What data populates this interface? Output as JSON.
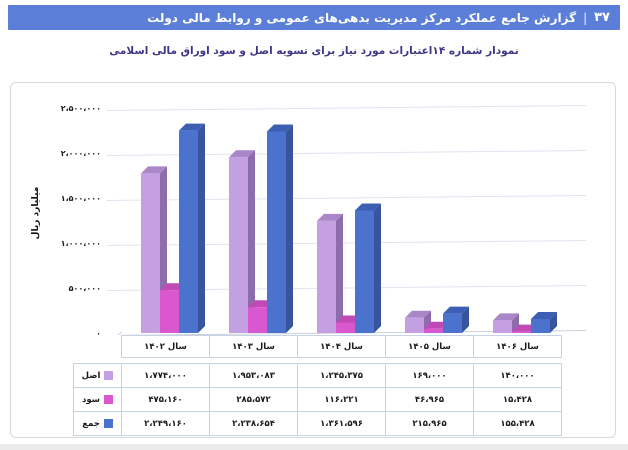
{
  "page": {
    "header": {
      "number": "۳۷",
      "separator": "|",
      "title": "گزارش جامع عملکرد مرکز مدیریت بدهی‌های عمومی و روابط مالی دولت",
      "bg_color": "#5b7ed8",
      "text_color": "#ffffff"
    },
    "title_color": "#3d3687",
    "footer_strip_color": "#ebebeb"
  },
  "chart_data": {
    "type": "bar",
    "style": "3d-clustered-column",
    "title": "نمودار شماره ۱۴اعتبارات مورد نیاز برای تسویه اصل و سود اوراق مالی اسلامی",
    "ylabel": "میلیارد ریال",
    "xlabel": "",
    "ylim": [
      0,
      2500000
    ],
    "ytick_interval": 500000,
    "yticks_display": [
      "۰",
      "۵۰۰،۰۰۰",
      "۱،۰۰۰،۰۰۰",
      "۱،۵۰۰،۰۰۰",
      "۲،۰۰۰،۰۰۰",
      "۲،۵۰۰،۰۰۰"
    ],
    "categories": [
      "سال ۱۴۰۲",
      "سال ۱۴۰۳",
      "سال ۱۴۰۴",
      "سال ۱۴۰۵",
      "سال ۱۴۰۶"
    ],
    "series": [
      {
        "name": "اصل",
        "values": [
          1774000,
          1953083,
          1245375,
          169000,
          140000
        ],
        "display": [
          "۱،۷۷۴،۰۰۰",
          "۱،۹۵۳،۰۸۳",
          "۱،۲۴۵،۳۷۵",
          "۱۶۹،۰۰۰",
          "۱۴۰،۰۰۰"
        ],
        "color": "#c49fe2",
        "color_top": "#aa87c8",
        "color_side": "#8d6cab"
      },
      {
        "name": "سود",
        "values": [
          475160,
          285572,
          116221,
          46965,
          15428
        ],
        "display": [
          "۴۷۵،۱۶۰",
          "۲۸۵،۵۷۲",
          "۱۱۶،۲۲۱",
          "۴۶،۹۶۵",
          "۱۵،۴۲۸"
        ],
        "color": "#da58cf",
        "color_top": "#c04ab6",
        "color_side": "#9d3f96"
      },
      {
        "name": "جمع",
        "values": [
          2249160,
          2238654,
          1361596,
          215965,
          155428
        ],
        "display": [
          "۲،۲۴۹،۱۶۰",
          "۲،۲۳۸،۶۵۴",
          "۱،۳۶۱،۵۹۶",
          "۲۱۵،۹۶۵",
          "۱۵۵،۴۲۸"
        ],
        "color": "#4b72cd",
        "color_top": "#3c5fb4",
        "color_side": "#38549e"
      }
    ],
    "grid": true,
    "legend_position": "data-table-side",
    "grid_color": "#dfe4f0",
    "axis_line_color": "#c9cfda",
    "axis_text_color": "#1a1a1a",
    "table_border_color": "#c5d3e5"
  }
}
